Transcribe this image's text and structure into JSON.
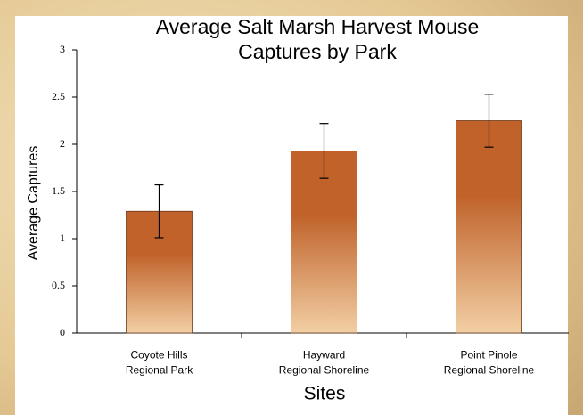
{
  "chart_data": {
    "type": "bar",
    "title": "Average Salt Marsh Harvest Mouse\nCaptures by Park",
    "x_label": "Sites",
    "y_label": "Average Captures",
    "categories": [
      "Coyote Hills\nRegional Park",
      "Hayward\nRegional Shoreline",
      "Point Pinole\nRegional Shoreline"
    ],
    "values": [
      1.29,
      1.93,
      2.25
    ],
    "errors": [
      0.28,
      0.29,
      0.28
    ],
    "color": "#c0622a",
    "color_light": "#f2cfa4",
    "ylim": [
      0,
      3
    ],
    "yticks": [
      0,
      0.5,
      1,
      1.5,
      2,
      2.5,
      3
    ],
    "grid": false
  }
}
